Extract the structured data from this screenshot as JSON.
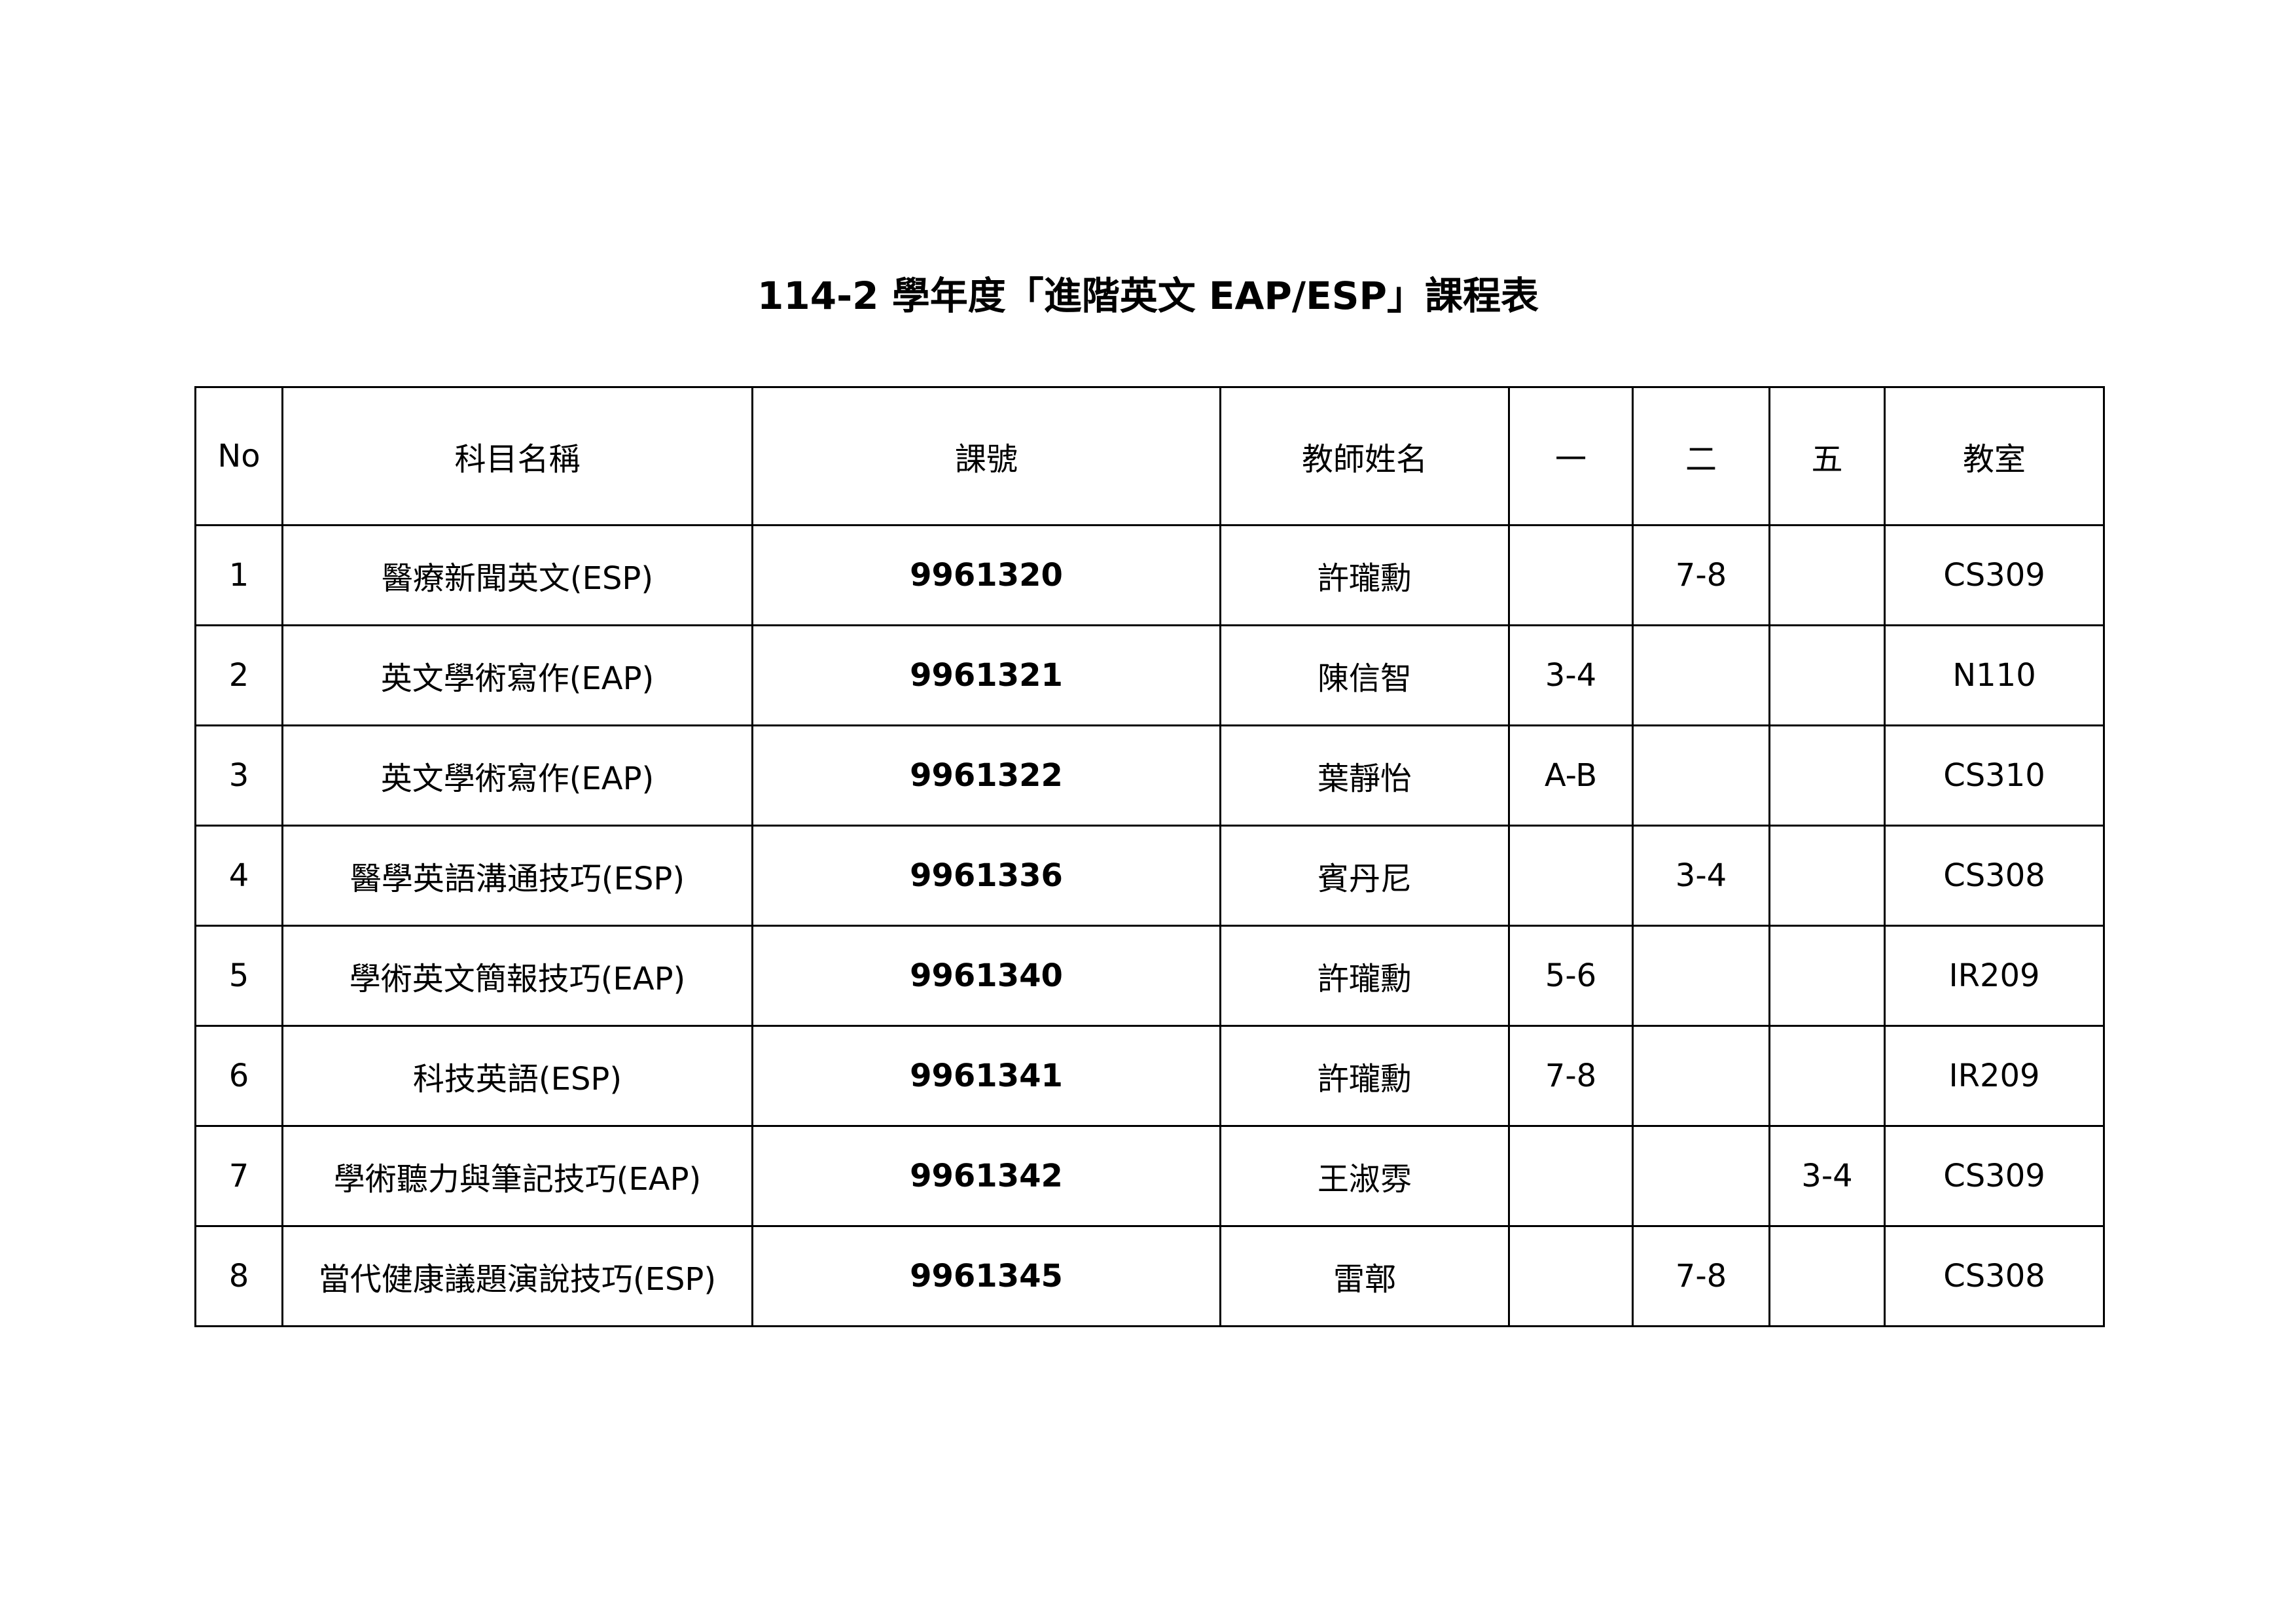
{
  "title": "114-2 學年度「進階英文 EAP/ESP」課程表",
  "headers": [
    "No",
    "科目名稱",
    "課號",
    "教師姓名",
    "一",
    "二",
    "五",
    "教室"
  ],
  "rows": [
    {
      "no": "1",
      "subject": "醫療新聞英文(ESP)",
      "code": "9961320",
      "teacher": "許瓏勳",
      "mon": "",
      "tue": "7-8",
      "fri": "",
      "room": "CS309"
    },
    {
      "no": "2",
      "subject": "英文學術寫作(EAP)",
      "code": "9961321",
      "teacher": "陳信智",
      "mon": "3-4",
      "tue": "",
      "fri": "",
      "room": "N110"
    },
    {
      "no": "3",
      "subject": "英文學術寫作(EAP)",
      "code": "9961322",
      "teacher": "葉靜怡",
      "mon": "A-B",
      "tue": "",
      "fri": "",
      "room": "CS310"
    },
    {
      "no": "4",
      "subject": "醫學英語溝通技巧(ESP)",
      "code": "9961336",
      "teacher": "賓丹尼",
      "mon": "",
      "tue": "3-4",
      "fri": "",
      "room": "CS308"
    },
    {
      "no": "5",
      "subject": "學術英文簡報技巧(EAP)",
      "code": "9961340",
      "teacher": "許瓏勳",
      "mon": "5-6",
      "tue": "",
      "fri": "",
      "room": "IR209"
    },
    {
      "no": "6",
      "subject": "科技英語(ESP)",
      "code": "9961341",
      "teacher": "許瓏勳",
      "mon": "7-8",
      "tue": "",
      "fri": "",
      "room": "IR209"
    },
    {
      "no": "7",
      "subject": "學術聽力與筆記技巧(EAP)",
      "code": "9961342",
      "teacher": "王淑雰",
      "mon": "",
      "tue": "",
      "fri": "3-4",
      "room": "CS309"
    },
    {
      "no": "8",
      "subject": "當代健康議題演說技巧(ESP)",
      "code": "9961345",
      "teacher": "雷鄣",
      "mon": "",
      "tue": "7-8",
      "fri": "",
      "room": "CS308"
    }
  ]
}
